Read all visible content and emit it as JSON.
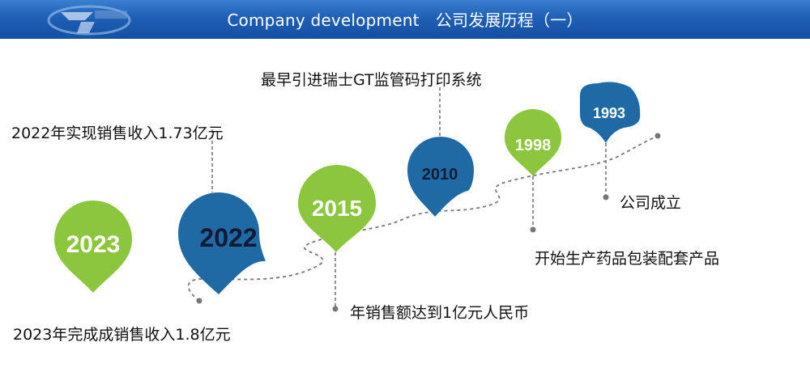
{
  "header": {
    "title": "Company development　公司发展历程（一）"
  },
  "logo": {
    "name": "company-logo-icon"
  },
  "colors": {
    "green": "#8cc63f",
    "blue": "#1f6aa5",
    "year_dark": "#0e1b33",
    "year_light": "#ffffff"
  },
  "milestones": [
    {
      "year": "2023",
      "text": "2023年完成成销售收入1.8亿元"
    },
    {
      "year": "2022",
      "text": "2022年实现销售收入1.73亿元"
    },
    {
      "year": "2015",
      "text": "年销售额达到1亿元人民币"
    },
    {
      "year": "2010",
      "text": "最早引进瑞士GT监管码打印系统"
    },
    {
      "year": "1998",
      "text": "开始生产药品包装配套产品"
    },
    {
      "year": "1993",
      "text": "公司成立"
    }
  ]
}
